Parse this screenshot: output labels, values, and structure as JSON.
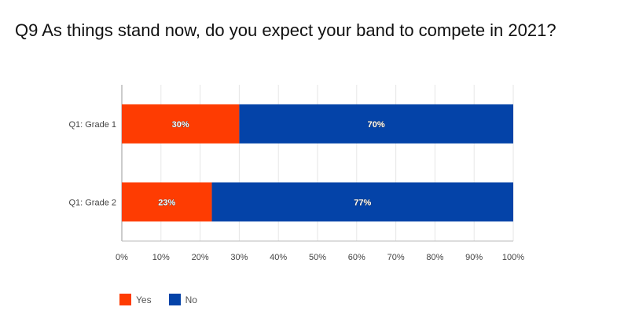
{
  "title": "Q9 As things stand now, do you expect your band to compete in 2021?",
  "chart_data": {
    "type": "bar",
    "orientation": "horizontal",
    "stacked": true,
    "categories": [
      "Q1: Grade 1",
      "Q1: Grade 2"
    ],
    "series": [
      {
        "name": "Yes",
        "color": "#fe3c02",
        "values": [
          30,
          23
        ],
        "labels": [
          "30%",
          "23%"
        ]
      },
      {
        "name": "No",
        "color": "#0443a8",
        "values": [
          70,
          77
        ],
        "labels": [
          "70%",
          "77%"
        ]
      }
    ],
    "xlim": [
      0,
      100
    ],
    "xticks": [
      "0%",
      "10%",
      "20%",
      "30%",
      "40%",
      "50%",
      "60%",
      "70%",
      "80%",
      "90%",
      "100%"
    ],
    "grid": true,
    "legend_position": "bottom-left"
  }
}
